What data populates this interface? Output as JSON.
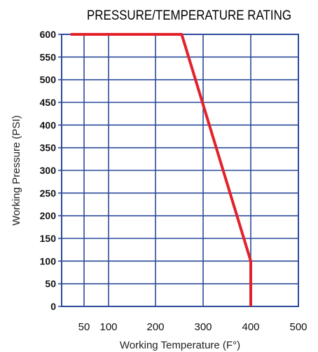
{
  "chart_data": {
    "type": "line",
    "title": "PRESSURE/TEMPERATURE RATING",
    "xlabel": "Working Temperature (F°)",
    "ylabel": "Working Pressure (PSI)",
    "x_tick_labels": [
      "50",
      "100",
      "200",
      "300",
      "400",
      "500"
    ],
    "y_ticks": [
      0,
      50,
      100,
      150,
      200,
      250,
      300,
      350,
      400,
      450,
      500,
      550,
      600
    ],
    "ylim": [
      0,
      600
    ],
    "grid": true,
    "series": [
      {
        "points": [
          {
            "x": 20,
            "y": 600
          },
          {
            "x": 255,
            "y": 600
          },
          {
            "x": 400,
            "y": 100
          },
          {
            "x": 400,
            "y": 0
          }
        ]
      }
    ],
    "colors": {
      "series": "#e3212b",
      "grid": "#2b4a9a",
      "frame": "#2b4a9a"
    }
  }
}
